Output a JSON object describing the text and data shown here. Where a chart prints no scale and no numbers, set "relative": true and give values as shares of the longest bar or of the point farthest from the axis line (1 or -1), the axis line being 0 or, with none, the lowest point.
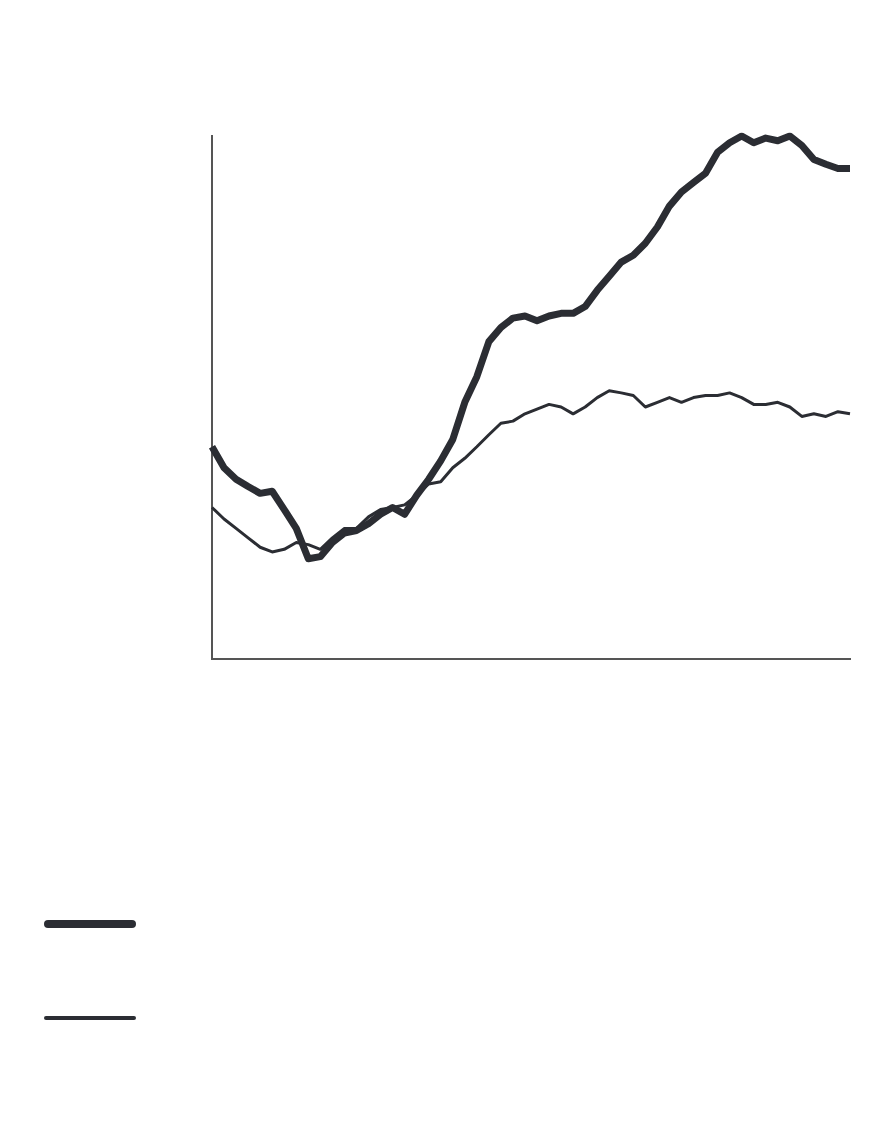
{
  "chart_data": {
    "type": "line",
    "relative": true,
    "categories": [
      null,
      null,
      null,
      null,
      null,
      null,
      null,
      null,
      null,
      null,
      null,
      null,
      null,
      null,
      null,
      null,
      null,
      null,
      null,
      null,
      null,
      null,
      null,
      null,
      null,
      null,
      null,
      null,
      null,
      null,
      null,
      null,
      null,
      null,
      null,
      null,
      null,
      null,
      null,
      null,
      null,
      null,
      null,
      null,
      null,
      null,
      null,
      null,
      null,
      null,
      null,
      null,
      null,
      null
    ],
    "series": [
      {
        "color": "#2b2d33",
        "values": [
          0.406,
          0.366,
          0.344,
          0.33,
          0.317,
          0.321,
          0.286,
          0.25,
          0.192,
          0.196,
          0.223,
          0.241,
          0.246,
          0.259,
          0.277,
          0.29,
          0.277,
          0.313,
          0.344,
          0.379,
          0.42,
          0.491,
          0.54,
          0.607,
          0.634,
          0.652,
          0.656,
          0.647,
          0.656,
          0.661,
          0.661,
          0.674,
          0.705,
          0.732,
          0.759,
          0.772,
          0.795,
          0.826,
          0.866,
          0.893,
          0.911,
          0.929,
          0.969,
          0.987,
          1,
          0.987,
          0.996,
          0.991,
          1,
          0.982,
          0.955,
          0.946,
          0.938,
          0.938
        ]
      },
      {
        "color": "#2b2d33",
        "values": [
          0.29,
          0.268,
          0.25,
          0.232,
          0.214,
          0.205,
          0.21,
          0.223,
          0.219,
          0.21,
          0.232,
          0.25,
          0.25,
          0.272,
          0.286,
          0.29,
          0.295,
          0.313,
          0.335,
          0.339,
          0.366,
          0.384,
          0.406,
          0.429,
          0.451,
          0.455,
          0.469,
          0.478,
          0.487,
          0.482,
          0.469,
          0.482,
          0.5,
          0.513,
          0.509,
          0.504,
          0.482,
          0.491,
          0.5,
          0.491,
          0.5,
          0.504,
          0.504,
          0.509,
          0.5,
          0.487,
          0.487,
          0.491,
          0.482,
          0.464,
          0.469,
          0.464,
          0.473,
          0.469
        ]
      }
    ],
    "grid": false,
    "marker": "none",
    "line_style": "solid"
  }
}
